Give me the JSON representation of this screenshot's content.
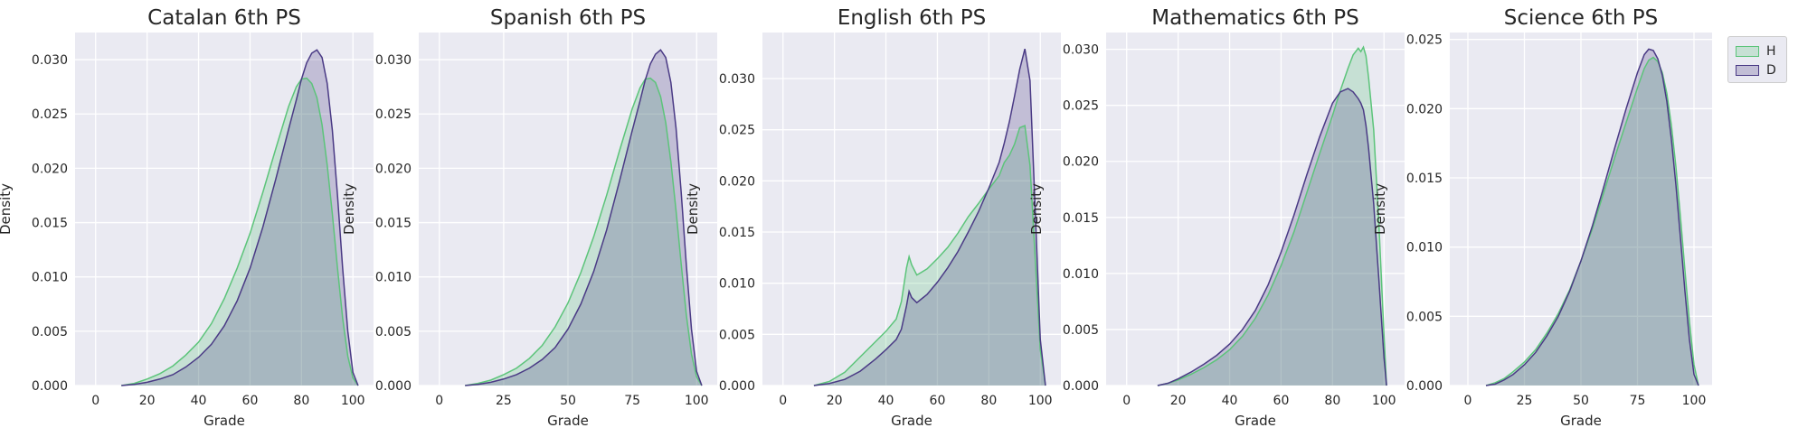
{
  "colors": {
    "plot_background": "#eaeaf2",
    "grid": "#ffffff",
    "text": "#262626",
    "series_H": "#5cc47a",
    "series_D": "#4a3a85"
  },
  "chart_data": [
    {
      "type": "area",
      "title": "Catalan 6th PS",
      "xlabel": "Grade",
      "ylabel": "Density",
      "xlim": [
        -8,
        108
      ],
      "ylim": [
        0,
        0.0325
      ],
      "xticks": [
        0,
        20,
        40,
        60,
        80,
        100
      ],
      "yticks": [
        "0.000",
        "0.005",
        "0.010",
        "0.015",
        "0.020",
        "0.025",
        "0.030"
      ],
      "grid": true,
      "series": [
        {
          "name": "H",
          "x": [
            10,
            15,
            20,
            25,
            30,
            35,
            40,
            45,
            50,
            55,
            60,
            65,
            70,
            75,
            78,
            80,
            82,
            84,
            86,
            88,
            90,
            92,
            94,
            96,
            98,
            100,
            102
          ],
          "y": [
            0,
            0.0002,
            0.0006,
            0.0011,
            0.0018,
            0.0028,
            0.004,
            0.0057,
            0.008,
            0.0108,
            0.014,
            0.0178,
            0.0218,
            0.0257,
            0.0275,
            0.0282,
            0.0283,
            0.0278,
            0.0265,
            0.024,
            0.0203,
            0.0158,
            0.0108,
            0.0062,
            0.0027,
            0.0007,
            0
          ]
        },
        {
          "name": "D",
          "x": [
            10,
            15,
            20,
            25,
            30,
            35,
            40,
            45,
            50,
            55,
            60,
            65,
            70,
            75,
            78,
            80,
            82,
            84,
            86,
            88,
            90,
            92,
            94,
            96,
            98,
            100,
            102
          ],
          "y": [
            0,
            0.0001,
            0.0003,
            0.0006,
            0.001,
            0.0017,
            0.0026,
            0.0038,
            0.0055,
            0.0078,
            0.0108,
            0.0146,
            0.019,
            0.0236,
            0.0263,
            0.0282,
            0.0297,
            0.0306,
            0.0309,
            0.0302,
            0.0278,
            0.0235,
            0.0175,
            0.0108,
            0.005,
            0.0012,
            0
          ]
        }
      ]
    },
    {
      "type": "area",
      "title": "Spanish 6th PS",
      "xlabel": "Grade",
      "ylabel": "Density",
      "xlim": [
        -8,
        108
      ],
      "ylim": [
        0,
        0.0325
      ],
      "xticks": [
        0,
        25,
        50,
        75,
        100
      ],
      "yticks": [
        "0.000",
        "0.005",
        "0.010",
        "0.015",
        "0.020",
        "0.025",
        "0.030"
      ],
      "grid": true,
      "series": [
        {
          "name": "H",
          "x": [
            10,
            15,
            20,
            25,
            30,
            35,
            40,
            45,
            50,
            55,
            60,
            65,
            70,
            75,
            78,
            80,
            82,
            84,
            86,
            88,
            90,
            92,
            94,
            96,
            98,
            100,
            102
          ],
          "y": [
            0,
            0.0002,
            0.0005,
            0.001,
            0.0016,
            0.0025,
            0.0037,
            0.0054,
            0.0076,
            0.0104,
            0.0137,
            0.0175,
            0.0216,
            0.0255,
            0.0274,
            0.0282,
            0.0283,
            0.0279,
            0.0266,
            0.0242,
            0.0206,
            0.0161,
            0.0112,
            0.0065,
            0.0029,
            0.0008,
            0
          ]
        },
        {
          "name": "D",
          "x": [
            10,
            15,
            20,
            25,
            30,
            35,
            40,
            45,
            50,
            55,
            60,
            65,
            70,
            75,
            78,
            80,
            82,
            84,
            86,
            88,
            90,
            92,
            94,
            96,
            98,
            100,
            102
          ],
          "y": [
            0,
            0.0001,
            0.0003,
            0.0006,
            0.001,
            0.0016,
            0.0024,
            0.0035,
            0.0052,
            0.0075,
            0.0105,
            0.0143,
            0.0188,
            0.0235,
            0.0262,
            0.0281,
            0.0296,
            0.0305,
            0.0309,
            0.0302,
            0.0279,
            0.0237,
            0.0178,
            0.0111,
            0.0052,
            0.0013,
            0
          ]
        }
      ]
    },
    {
      "type": "area",
      "title": "English 6th PS",
      "xlabel": "Grade",
      "ylabel": "Density",
      "xlim": [
        -8,
        108
      ],
      "ylim": [
        0,
        0.0345
      ],
      "xticks": [
        0,
        20,
        40,
        60,
        80,
        100
      ],
      "yticks": [
        "0.000",
        "0.005",
        "0.010",
        "0.015",
        "0.020",
        "0.025",
        "0.030"
      ],
      "grid": true,
      "series": [
        {
          "name": "H",
          "x": [
            12,
            18,
            24,
            30,
            36,
            40,
            44,
            46,
            48,
            49,
            50,
            52,
            56,
            60,
            64,
            68,
            72,
            76,
            80,
            84,
            86,
            88,
            90,
            92,
            94,
            96,
            98,
            100,
            102
          ],
          "y": [
            0,
            0.0004,
            0.0013,
            0.0028,
            0.0043,
            0.0053,
            0.0065,
            0.0082,
            0.0115,
            0.0126,
            0.0118,
            0.0108,
            0.0114,
            0.0124,
            0.0135,
            0.0149,
            0.0165,
            0.0178,
            0.0192,
            0.0205,
            0.0218,
            0.0225,
            0.0236,
            0.0252,
            0.0254,
            0.0215,
            0.0125,
            0.0035,
            0
          ]
        },
        {
          "name": "D",
          "x": [
            12,
            18,
            24,
            30,
            36,
            40,
            44,
            46,
            48,
            49,
            50,
            52,
            56,
            60,
            64,
            68,
            72,
            76,
            80,
            84,
            86,
            88,
            90,
            92,
            94,
            96,
            98,
            100,
            102
          ],
          "y": [
            0,
            0.0002,
            0.0006,
            0.0014,
            0.0026,
            0.0035,
            0.0045,
            0.0055,
            0.0078,
            0.0092,
            0.0086,
            0.0081,
            0.0089,
            0.0101,
            0.0115,
            0.0131,
            0.015,
            0.017,
            0.0193,
            0.0218,
            0.0237,
            0.0258,
            0.0283,
            0.0309,
            0.0329,
            0.0298,
            0.0173,
            0.0045,
            0
          ]
        }
      ]
    },
    {
      "type": "area",
      "title": "Mathematics 6th PS",
      "xlabel": "Grade",
      "ylabel": "Density",
      "xlim": [
        -8,
        108
      ],
      "ylim": [
        0,
        0.0315
      ],
      "xticks": [
        0,
        20,
        40,
        60,
        80,
        100
      ],
      "yticks": [
        "0.000",
        "0.005",
        "0.010",
        "0.015",
        "0.020",
        "0.025",
        "0.030"
      ],
      "grid": true,
      "series": [
        {
          "name": "H",
          "x": [
            12,
            16,
            20,
            25,
            30,
            35,
            40,
            45,
            50,
            55,
            60,
            65,
            70,
            75,
            80,
            83,
            86,
            88,
            90,
            91,
            92,
            93,
            94,
            96,
            98,
            100,
            101
          ],
          "y": [
            0,
            0.0002,
            0.0005,
            0.001,
            0.0016,
            0.0023,
            0.0032,
            0.0044,
            0.006,
            0.0081,
            0.0107,
            0.0137,
            0.0172,
            0.0207,
            0.0241,
            0.0263,
            0.0283,
            0.0295,
            0.0301,
            0.0298,
            0.0302,
            0.0294,
            0.0275,
            0.0228,
            0.0145,
            0.0045,
            0
          ]
        },
        {
          "name": "D",
          "x": [
            12,
            16,
            20,
            25,
            30,
            35,
            40,
            45,
            50,
            55,
            60,
            65,
            70,
            75,
            80,
            83,
            86,
            88,
            90,
            91,
            92,
            93,
            94,
            96,
            98,
            100,
            101
          ],
          "y": [
            0,
            0.0002,
            0.0006,
            0.0012,
            0.0019,
            0.0027,
            0.0037,
            0.005,
            0.0067,
            0.009,
            0.0119,
            0.0152,
            0.0188,
            0.0222,
            0.0252,
            0.0262,
            0.0265,
            0.0262,
            0.0256,
            0.0252,
            0.0246,
            0.0232,
            0.0212,
            0.0162,
            0.0095,
            0.0025,
            0
          ]
        }
      ]
    },
    {
      "type": "area",
      "title": "Science 6th PS",
      "xlabel": "Grade",
      "ylabel": "Density",
      "xlim": [
        -8,
        108
      ],
      "ylim": [
        0,
        0.0255
      ],
      "xticks": [
        0,
        25,
        50,
        75,
        100
      ],
      "yticks": [
        "0.000",
        "0.005",
        "0.010",
        "0.015",
        "0.020",
        "0.025"
      ],
      "grid": true,
      "series": [
        {
          "name": "H",
          "x": [
            8,
            12,
            16,
            20,
            25,
            30,
            35,
            40,
            45,
            50,
            55,
            60,
            65,
            70,
            75,
            78,
            80,
            82,
            84,
            86,
            88,
            90,
            92,
            94,
            96,
            98,
            100,
            102
          ],
          "y": [
            0,
            0.0002,
            0.0005,
            0.001,
            0.0017,
            0.0026,
            0.0038,
            0.0052,
            0.0069,
            0.009,
            0.0113,
            0.0139,
            0.0165,
            0.019,
            0.0215,
            0.0229,
            0.0235,
            0.0237,
            0.0234,
            0.0226,
            0.0211,
            0.0188,
            0.0158,
            0.0122,
            0.0083,
            0.0046,
            0.0015,
            0
          ]
        },
        {
          "name": "D",
          "x": [
            8,
            12,
            16,
            20,
            25,
            30,
            35,
            40,
            45,
            50,
            55,
            60,
            65,
            70,
            75,
            78,
            80,
            82,
            84,
            86,
            88,
            90,
            92,
            94,
            96,
            98,
            100,
            102
          ],
          "y": [
            0,
            0.0001,
            0.0004,
            0.0008,
            0.0015,
            0.0024,
            0.0036,
            0.005,
            0.0068,
            0.009,
            0.0115,
            0.0143,
            0.0172,
            0.02,
            0.0226,
            0.0239,
            0.0243,
            0.0242,
            0.0236,
            0.0224,
            0.0205,
            0.0178,
            0.0145,
            0.0107,
            0.0068,
            0.0033,
            0.0008,
            0
          ]
        }
      ]
    }
  ],
  "legend": {
    "placement": "upper-right-outside",
    "entries": [
      {
        "label": "H",
        "color_key": "series_H"
      },
      {
        "label": "D",
        "color_key": "series_D"
      }
    ]
  }
}
